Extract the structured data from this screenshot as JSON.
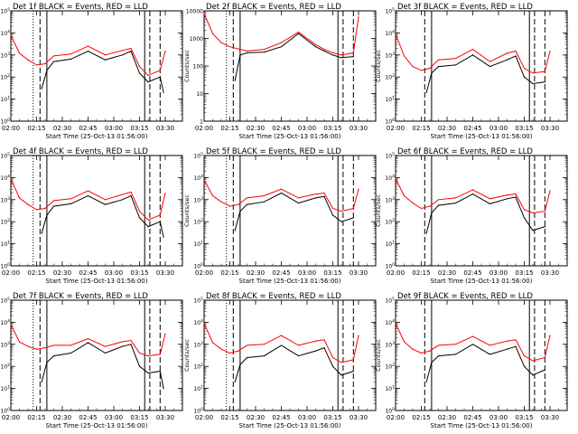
{
  "shared": {
    "xlabel": "Start Time (25-Oct-13 01:56:00)",
    "ylabel": "Counts/sec",
    "xticks": [
      "02:00",
      "02:15",
      "02:30",
      "02:45",
      "03:00",
      "03:15",
      "03:30"
    ],
    "xrange_minutes_from_0200": [
      0,
      100
    ],
    "series_colors": {
      "events": "#000000",
      "lld": "#ff0000"
    },
    "title_template": "Det {n}f BLACK = Events, RED = LLD"
  },
  "chart_data": [
    {
      "type": "line",
      "title": "Det 1f BLACK = Events, RED = LLD",
      "xlabel": "Start Time (25-Oct-13 01:56:00)",
      "ylabel": "Counts/sec",
      "yscale": "log",
      "ylim": [
        1,
        100000
      ],
      "yticks": [
        "10^0",
        "10^1",
        "10^2",
        "10^3",
        "10^4",
        "10^5"
      ],
      "markers": [
        {
          "style": "dotted",
          "x": "02:13"
        },
        {
          "style": "dashed",
          "x": "02:17"
        },
        {
          "style": "solid",
          "x": "02:21"
        },
        {
          "style": "solid",
          "x": "03:18"
        },
        {
          "style": "dashed",
          "x": "03:21"
        },
        {
          "style": "dashed",
          "x": "03:27"
        }
      ],
      "series": [
        {
          "color": "#ff0000",
          "x": [
            "02:00",
            "02:05",
            "02:10",
            "02:15",
            "02:20",
            "02:25",
            "02:35",
            "02:45",
            "02:55",
            "03:05",
            "03:10",
            "03:15",
            "03:20",
            "03:27",
            "03:30"
          ],
          "y": [
            8000,
            1200,
            600,
            350,
            400,
            900,
            1100,
            2500,
            1000,
            1600,
            2000,
            300,
            120,
            200,
            1500
          ]
        },
        {
          "color": "#000000",
          "x": [
            "02:18",
            "02:21",
            "02:25",
            "02:35",
            "02:45",
            "02:55",
            "03:05",
            "03:10",
            "03:15",
            "03:20",
            "03:27",
            "03:29"
          ],
          "y": [
            30,
            200,
            500,
            650,
            1500,
            600,
            1000,
            1500,
            150,
            60,
            100,
            20
          ]
        }
      ]
    },
    {
      "type": "line",
      "title": "Det 2f BLACK = Events, RED = LLD",
      "xlabel": "Start Time (25-Oct-13 01:56:00)",
      "ylabel": "Counts/sec",
      "yscale": "log",
      "ylim": [
        1,
        10000
      ],
      "yticks": [
        "1",
        "10",
        "100",
        "1000",
        "10000"
      ],
      "markers": [
        {
          "style": "dotted",
          "x": "02:13"
        },
        {
          "style": "dashed",
          "x": "02:17"
        },
        {
          "style": "solid",
          "x": "02:21"
        },
        {
          "style": "solid",
          "x": "03:18"
        },
        {
          "style": "dashed",
          "x": "03:21"
        },
        {
          "style": "dashed",
          "x": "03:27"
        }
      ],
      "series": [
        {
          "color": "#ff0000",
          "x": [
            "02:00",
            "02:05",
            "02:10",
            "02:15",
            "02:25",
            "02:35",
            "02:45",
            "02:55",
            "03:05",
            "03:10",
            "03:15",
            "03:20",
            "03:27",
            "03:30"
          ],
          "y": [
            8000,
            1500,
            700,
            500,
            350,
            400,
            700,
            1700,
            600,
            400,
            300,
            250,
            300,
            6000
          ]
        },
        {
          "color": "#000000",
          "x": [
            "02:18",
            "02:21",
            "02:25",
            "02:35",
            "02:45",
            "02:55",
            "03:05",
            "03:10",
            "03:15",
            "03:20",
            "03:27"
          ],
          "y": [
            30,
            250,
            300,
            320,
            500,
            1500,
            500,
            350,
            250,
            200,
            220
          ]
        }
      ]
    },
    {
      "type": "line",
      "title": "Det 3f BLACK = Events, RED = LLD",
      "xlabel": "Start Time (25-Oct-13 01:56:00)",
      "ylabel": "Counts/sec",
      "yscale": "log",
      "ylim": [
        1,
        100000
      ],
      "yticks": [
        "10^0",
        "10^1",
        "10^2",
        "10^3",
        "10^4",
        "10^5"
      ],
      "markers": [
        {
          "style": "dashed",
          "x": "02:17"
        },
        {
          "style": "solid",
          "x": "02:21"
        },
        {
          "style": "solid",
          "x": "03:18"
        },
        {
          "style": "dashed",
          "x": "03:21"
        },
        {
          "style": "dashed",
          "x": "03:27"
        }
      ],
      "series": [
        {
          "color": "#ff0000",
          "x": [
            "02:00",
            "02:05",
            "02:10",
            "02:15",
            "02:20",
            "02:25",
            "02:35",
            "02:45",
            "02:55",
            "03:05",
            "03:10",
            "03:15",
            "03:20",
            "03:27",
            "03:30"
          ],
          "y": [
            9000,
            900,
            300,
            200,
            250,
            600,
            700,
            1800,
            500,
            1200,
            1500,
            250,
            150,
            180,
            1500
          ]
        },
        {
          "color": "#000000",
          "x": [
            "02:18",
            "02:21",
            "02:25",
            "02:35",
            "02:45",
            "02:55",
            "03:05",
            "03:10",
            "03:15",
            "03:20",
            "03:27"
          ],
          "y": [
            20,
            150,
            300,
            350,
            1000,
            300,
            600,
            900,
            100,
            50,
            60
          ]
        }
      ]
    },
    {
      "type": "line",
      "title": "Det 4f BLACK = Events, RED = LLD",
      "xlabel": "Start Time (25-Oct-13 01:56:00)",
      "ylabel": "Counts/sec",
      "yscale": "log",
      "ylim": [
        1,
        100000
      ],
      "yticks": [
        "10^0",
        "10^1",
        "10^2",
        "10^3",
        "10^4",
        "10^5"
      ],
      "markers": [
        {
          "style": "dotted",
          "x": "02:13"
        },
        {
          "style": "dashed",
          "x": "02:17"
        },
        {
          "style": "solid",
          "x": "02:21"
        },
        {
          "style": "solid",
          "x": "03:18"
        },
        {
          "style": "dashed",
          "x": "03:21"
        },
        {
          "style": "dashed",
          "x": "03:27"
        }
      ],
      "series": [
        {
          "color": "#ff0000",
          "x": [
            "02:00",
            "02:05",
            "02:10",
            "02:15",
            "02:20",
            "02:25",
            "02:35",
            "02:45",
            "02:55",
            "03:05",
            "03:10",
            "03:15",
            "03:20",
            "03:27",
            "03:30"
          ],
          "y": [
            9000,
            1200,
            600,
            350,
            400,
            900,
            1100,
            2500,
            1000,
            1700,
            2200,
            300,
            120,
            200,
            2000
          ]
        },
        {
          "color": "#000000",
          "x": [
            "02:18",
            "02:21",
            "02:25",
            "02:35",
            "02:45",
            "02:55",
            "03:05",
            "03:10",
            "03:15",
            "03:20",
            "03:27",
            "03:29"
          ],
          "y": [
            30,
            200,
            500,
            650,
            1500,
            600,
            1000,
            1500,
            150,
            60,
            100,
            20
          ]
        }
      ]
    },
    {
      "type": "line",
      "title": "Det 5f BLACK = Events, RED = LLD",
      "xlabel": "Start Time (25-Oct-13 01:56:00)",
      "ylabel": "Counts/sec",
      "yscale": "log",
      "ylim": [
        1,
        100000
      ],
      "yticks": [
        "10^0",
        "10^1",
        "10^2",
        "10^3",
        "10^4",
        "10^5"
      ],
      "markers": [
        {
          "style": "dotted",
          "x": "02:13"
        },
        {
          "style": "dashed",
          "x": "02:17"
        },
        {
          "style": "solid",
          "x": "02:21"
        },
        {
          "style": "solid",
          "x": "03:18"
        },
        {
          "style": "dashed",
          "x": "03:21"
        },
        {
          "style": "dashed",
          "x": "03:27"
        }
      ],
      "series": [
        {
          "color": "#ff0000",
          "x": [
            "02:00",
            "02:05",
            "02:10",
            "02:15",
            "02:20",
            "02:25",
            "02:35",
            "02:45",
            "02:55",
            "03:05",
            "03:10",
            "03:15",
            "03:20",
            "03:27",
            "03:30"
          ],
          "y": [
            8000,
            1500,
            800,
            500,
            600,
            1200,
            1500,
            3000,
            1200,
            1800,
            2000,
            400,
            300,
            400,
            3000
          ]
        },
        {
          "color": "#000000",
          "x": [
            "02:18",
            "02:21",
            "02:25",
            "02:35",
            "02:45",
            "02:55",
            "03:05",
            "03:10",
            "03:15",
            "03:20",
            "03:27"
          ],
          "y": [
            40,
            300,
            600,
            800,
            2000,
            700,
            1200,
            1400,
            200,
            100,
            150
          ]
        }
      ]
    },
    {
      "type": "line",
      "title": "Det 6f BLACK = Events, RED = LLD",
      "xlabel": "Start Time (25-Oct-13 01:56:00)",
      "ylabel": "Counts/sec",
      "yscale": "log",
      "ylim": [
        1,
        100000
      ],
      "yticks": [
        "10^0",
        "10^1",
        "10^2",
        "10^3",
        "10^4",
        "10^5"
      ],
      "markers": [
        {
          "style": "dashed",
          "x": "02:17"
        },
        {
          "style": "solid",
          "x": "02:21"
        },
        {
          "style": "solid",
          "x": "03:18"
        },
        {
          "style": "dashed",
          "x": "03:21"
        },
        {
          "style": "dashed",
          "x": "03:27"
        }
      ],
      "series": [
        {
          "color": "#ff0000",
          "x": [
            "02:00",
            "02:05",
            "02:10",
            "02:15",
            "02:20",
            "02:25",
            "02:35",
            "02:45",
            "02:55",
            "03:05",
            "03:10",
            "03:15",
            "03:20",
            "03:27",
            "03:30"
          ],
          "y": [
            9000,
            1500,
            700,
            400,
            500,
            1000,
            1200,
            2800,
            1100,
            1600,
            1800,
            350,
            250,
            300,
            2500
          ]
        },
        {
          "color": "#000000",
          "x": [
            "02:18",
            "02:21",
            "02:25",
            "02:35",
            "02:45",
            "02:55",
            "03:05",
            "03:10",
            "03:15",
            "03:20",
            "03:27"
          ],
          "y": [
            30,
            250,
            550,
            700,
            1800,
            650,
            1100,
            1300,
            150,
            40,
            60
          ]
        }
      ]
    },
    {
      "type": "line",
      "title": "Det 7f BLACK = Events, RED = LLD",
      "xlabel": "Start Time (25-Oct-13 01:56:00)",
      "ylabel": "Counts/sec",
      "yscale": "log",
      "ylim": [
        1,
        100000
      ],
      "yticks": [
        "10^0",
        "10^1",
        "10^2",
        "10^3",
        "10^4",
        "10^5"
      ],
      "markers": [
        {
          "style": "dotted",
          "x": "02:13"
        },
        {
          "style": "dashed",
          "x": "02:17"
        },
        {
          "style": "solid",
          "x": "02:21"
        },
        {
          "style": "solid",
          "x": "03:18"
        },
        {
          "style": "dashed",
          "x": "03:21"
        },
        {
          "style": "dashed",
          "x": "03:27"
        }
      ],
      "series": [
        {
          "color": "#ff0000",
          "x": [
            "02:00",
            "02:05",
            "02:10",
            "02:15",
            "02:20",
            "02:25",
            "02:35",
            "02:45",
            "02:55",
            "03:05",
            "03:10",
            "03:15",
            "03:20",
            "03:27",
            "03:30"
          ],
          "y": [
            8000,
            1300,
            800,
            600,
            700,
            900,
            900,
            1800,
            800,
            1300,
            1500,
            400,
            300,
            350,
            3000
          ]
        },
        {
          "color": "#000000",
          "x": [
            "02:18",
            "02:21",
            "02:25",
            "02:35",
            "02:45",
            "02:55",
            "03:05",
            "03:10",
            "03:15",
            "03:20",
            "03:27",
            "03:29"
          ],
          "y": [
            20,
            150,
            300,
            400,
            1200,
            400,
            800,
            1000,
            100,
            50,
            60,
            10
          ]
        }
      ]
    },
    {
      "type": "line",
      "title": "Det 8f BLACK = Events, RED = LLD",
      "xlabel": "Start Time (25-Oct-13 01:56:00)",
      "ylabel": "Counts/sec",
      "yscale": "log",
      "ylim": [
        1,
        100000
      ],
      "yticks": [
        "10^0",
        "10^1",
        "10^2",
        "10^3",
        "10^4",
        "10^5"
      ],
      "markers": [
        {
          "style": "dotted",
          "x": "02:13"
        },
        {
          "style": "dashed",
          "x": "02:17"
        },
        {
          "style": "solid",
          "x": "02:21"
        },
        {
          "style": "solid",
          "x": "03:18"
        },
        {
          "style": "dashed",
          "x": "03:21"
        },
        {
          "style": "dashed",
          "x": "03:27"
        }
      ],
      "series": [
        {
          "color": "#ff0000",
          "x": [
            "02:00",
            "02:05",
            "02:10",
            "02:15",
            "02:20",
            "02:25",
            "02:35",
            "02:45",
            "02:55",
            "03:05",
            "03:10",
            "03:15",
            "03:20",
            "03:27",
            "03:30"
          ],
          "y": [
            9000,
            1200,
            600,
            400,
            500,
            900,
            1000,
            2500,
            900,
            1400,
            1600,
            250,
            150,
            200,
            2500
          ]
        },
        {
          "color": "#000000",
          "x": [
            "02:18",
            "02:21",
            "02:25",
            "02:35",
            "02:45",
            "02:55",
            "03:05",
            "03:10",
            "03:15",
            "03:20",
            "03:27"
          ],
          "y": [
            20,
            120,
            250,
            300,
            900,
            300,
            500,
            700,
            100,
            40,
            60
          ]
        }
      ]
    },
    {
      "type": "line",
      "title": "Det 9f BLACK = Events, RED = LLD",
      "xlabel": "Start Time (25-Oct-13 01:56:00)",
      "ylabel": "Counts/sec",
      "yscale": "log",
      "ylim": [
        1,
        100000
      ],
      "yticks": [
        "10^0",
        "10^1",
        "10^2",
        "10^3",
        "10^4",
        "10^5"
      ],
      "markers": [
        {
          "style": "dashed",
          "x": "02:17"
        },
        {
          "style": "solid",
          "x": "02:21"
        },
        {
          "style": "solid",
          "x": "03:18"
        },
        {
          "style": "dashed",
          "x": "03:21"
        },
        {
          "style": "dashed",
          "x": "03:27"
        }
      ],
      "series": [
        {
          "color": "#ff0000",
          "x": [
            "02:00",
            "02:05",
            "02:10",
            "02:15",
            "02:20",
            "02:25",
            "02:35",
            "02:45",
            "02:55",
            "03:05",
            "03:10",
            "03:15",
            "03:20",
            "03:27",
            "03:30"
          ],
          "y": [
            9000,
            1300,
            600,
            400,
            500,
            900,
            1000,
            2300,
            900,
            1400,
            1600,
            300,
            180,
            250,
            2500
          ]
        },
        {
          "color": "#000000",
          "x": [
            "02:18",
            "02:21",
            "02:25",
            "02:35",
            "02:45",
            "02:55",
            "03:05",
            "03:10",
            "03:15",
            "03:20",
            "03:27"
          ],
          "y": [
            20,
            150,
            300,
            350,
            1000,
            350,
            600,
            800,
            100,
            40,
            70
          ]
        }
      ]
    }
  ]
}
